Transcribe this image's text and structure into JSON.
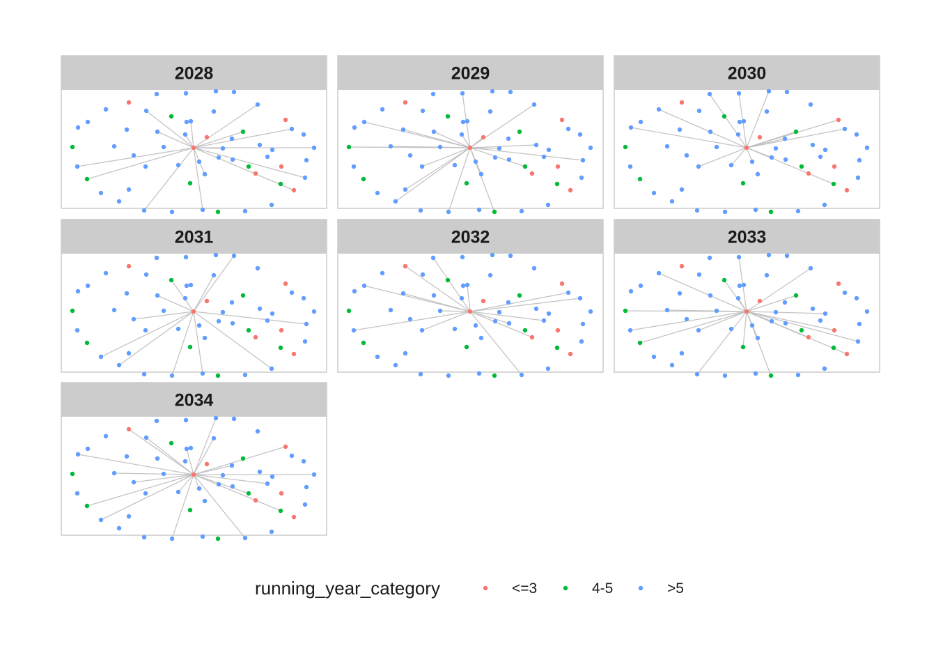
{
  "chart_data": {
    "type": "network",
    "facet_variable": "year",
    "facets": [
      "2028",
      "2029",
      "2030",
      "2031",
      "2032",
      "2033",
      "2034"
    ],
    "legend": {
      "title": "running_year_category",
      "placement": "bottom",
      "entries": [
        {
          "label": "<=3",
          "color": "#F8766D"
        },
        {
          "label": "4-5",
          "color": "#00BA38"
        },
        {
          "label": ">5",
          "color": "#619CFF"
        }
      ]
    },
    "node_categories": [
      "<=3",
      "4-5",
      ">5",
      ">5",
      "4-5",
      ">5",
      ">5",
      ">5",
      ">5",
      "<=3",
      ">5",
      ">5",
      ">5",
      ">5",
      ">5",
      ">5",
      "4-5",
      ">5",
      ">5",
      ">5",
      ">5",
      "<=3",
      "<=3",
      ">5",
      ">5",
      ">5",
      ">5",
      ">5",
      ">5",
      ">5",
      ">5",
      ">5",
      ">5",
      ">5",
      ">5",
      "4-5",
      ">5",
      ">5",
      ">5",
      ">5",
      ">5",
      "<=3",
      ">5",
      ">5",
      ">5",
      ">5",
      ">5",
      "4-5",
      "4-5",
      "<=3",
      ">5",
      ">5",
      ">5",
      "4-5",
      "<=3",
      ">5",
      "4-5",
      ">5"
    ],
    "edges_by_facet": {
      "2028": [
        [
          0,
          3
        ],
        [
          0,
          10
        ],
        [
          0,
          14
        ],
        [
          0,
          19
        ],
        [
          0,
          22
        ],
        [
          0,
          25
        ],
        [
          0,
          27
        ],
        [
          0,
          32
        ],
        [
          0,
          33
        ],
        [
          0,
          37
        ],
        [
          0,
          38
        ],
        [
          0,
          40
        ],
        [
          0,
          44
        ],
        [
          0,
          47
        ],
        [
          0,
          4
        ],
        [
          0,
          24
        ]
      ],
      "2029": [
        [
          0,
          1
        ],
        [
          0,
          5
        ],
        [
          0,
          8
        ],
        [
          0,
          12
        ],
        [
          0,
          13
        ],
        [
          0,
          16
        ],
        [
          0,
          19
        ],
        [
          0,
          26
        ],
        [
          0,
          28
        ],
        [
          0,
          29
        ],
        [
          0,
          31
        ],
        [
          0,
          33
        ],
        [
          0,
          37
        ],
        [
          0,
          40
        ],
        [
          0,
          41
        ],
        [
          0,
          44
        ],
        [
          0,
          48
        ],
        [
          0,
          50
        ],
        [
          0,
          55
        ]
      ],
      "2030": [
        [
          0,
          2
        ],
        [
          0,
          7
        ],
        [
          0,
          11
        ],
        [
          0,
          13
        ],
        [
          0,
          15
        ],
        [
          0,
          21
        ],
        [
          0,
          27
        ],
        [
          0,
          31
        ],
        [
          0,
          36
        ],
        [
          0,
          39
        ],
        [
          0,
          43
        ],
        [
          0,
          45
        ],
        [
          0,
          47
        ],
        [
          0,
          53
        ]
      ],
      "2031": [
        [
          0,
          6
        ],
        [
          0,
          8
        ],
        [
          0,
          12
        ],
        [
          0,
          14
        ],
        [
          0,
          17
        ],
        [
          0,
          20
        ],
        [
          0,
          26
        ],
        [
          0,
          30
        ],
        [
          0,
          33
        ],
        [
          0,
          35
        ],
        [
          0,
          42
        ]
      ],
      "2032": [
        [
          0,
          3
        ],
        [
          0,
          5
        ],
        [
          0,
          9
        ],
        [
          0,
          11
        ],
        [
          0,
          18
        ],
        [
          0,
          23
        ],
        [
          0,
          27
        ],
        [
          0,
          29
        ],
        [
          0,
          31
        ],
        [
          0,
          34
        ],
        [
          0,
          38
        ],
        [
          0,
          46
        ],
        [
          0,
          49
        ],
        [
          0,
          51
        ]
      ],
      "2033": [
        [
          0,
          1
        ],
        [
          0,
          3
        ],
        [
          0,
          4
        ],
        [
          0,
          7
        ],
        [
          0,
          10
        ],
        [
          0,
          13
        ],
        [
          0,
          16
        ],
        [
          0,
          19
        ],
        [
          0,
          22
        ],
        [
          0,
          24
        ],
        [
          0,
          28
        ],
        [
          0,
          31
        ],
        [
          0,
          35
        ],
        [
          0,
          37
        ],
        [
          0,
          40
        ],
        [
          0,
          43
        ],
        [
          0,
          47
        ],
        [
          0,
          49
        ],
        [
          0,
          52
        ],
        [
          0,
          54
        ],
        [
          0,
          56
        ]
      ],
      "2034": [
        [
          0,
          2
        ],
        [
          0,
          4
        ],
        [
          0,
          6
        ],
        [
          0,
          9
        ],
        [
          0,
          12
        ],
        [
          0,
          15
        ],
        [
          0,
          18
        ],
        [
          0,
          21
        ],
        [
          0,
          25
        ],
        [
          0,
          28
        ],
        [
          0,
          30
        ],
        [
          0,
          32
        ],
        [
          0,
          36
        ],
        [
          0,
          39
        ],
        [
          0,
          42
        ],
        [
          0,
          45
        ],
        [
          0,
          48
        ],
        [
          0,
          51
        ],
        [
          0,
          53
        ],
        [
          0,
          57
        ]
      ]
    },
    "colors": {
      "strip_background": "#CCCCCC",
      "panel_border": "#CCCCCC",
      "edge": "#BEBEBE"
    }
  }
}
